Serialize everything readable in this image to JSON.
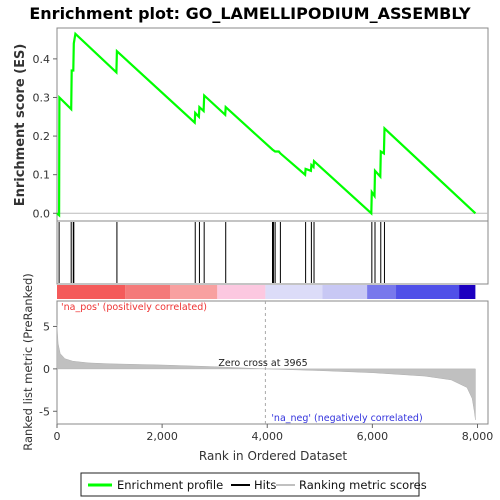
{
  "chart_data": {
    "type": "line",
    "title": "Enrichment plot: GO_LAMELLIPODIUM_ASSEMBLY",
    "panels": {
      "es": {
        "ylabel": "Enrichment score (ES)",
        "ylim": [
          -0.02,
          0.48
        ],
        "yticks": [
          "0.0",
          "0.1",
          "0.2",
          "0.3",
          "0.4"
        ],
        "ytick_values": [
          0.0,
          0.1,
          0.2,
          0.3,
          0.4
        ],
        "xlim": [
          0,
          8200
        ],
        "series": [
          {
            "name": "Enrichment profile",
            "color": "#00ff00",
            "x": [
              0,
              40,
              45,
              270,
              280,
              310,
              320,
              350,
              1130,
              1140,
              2620,
              2630,
              2700,
              2710,
              2790,
              2800,
              3200,
              3210,
              4100,
              4150,
              4220,
              4250,
              4720,
              4730,
              4830,
              4840,
              4880,
              4890,
              5980,
              5990,
              6040,
              6050,
              6150,
              6160,
              6220,
              6230,
              7960
            ],
            "y": [
              0.0,
              -0.005,
              0.3,
              0.27,
              0.37,
              0.37,
              0.44,
              0.465,
              0.365,
              0.42,
              0.235,
              0.26,
              0.25,
              0.275,
              0.265,
              0.305,
              0.255,
              0.275,
              0.165,
              0.16,
              0.16,
              0.155,
              0.1,
              0.115,
              0.11,
              0.125,
              0.12,
              0.135,
              0.0,
              0.055,
              0.045,
              0.11,
              0.095,
              0.16,
              0.155,
              0.22,
              0.0
            ]
          }
        ]
      },
      "hits": {
        "name": "Hits",
        "x": [
          40,
          270,
          310,
          320,
          1140,
          2630,
          2710,
          2800,
          3210,
          4100,
          4120,
          4150,
          4250,
          4730,
          4840,
          4890,
          5990,
          6050,
          6160,
          6230
        ]
      },
      "ranking": {
        "ylabel": "Ranked list metric (PreRanked)",
        "xlabel": "Rank in Ordered Dataset",
        "ylim": [
          -6.5,
          8
        ],
        "yticks": [
          "-5",
          "0",
          "5"
        ],
        "ytick_values": [
          -5,
          0,
          5
        ],
        "xlim": [
          0,
          8200
        ],
        "xticks": [
          "0",
          "2,000",
          "4,000",
          "6,000",
          "8,000"
        ],
        "xtick_values": [
          0,
          2000,
          4000,
          6000,
          8000
        ],
        "x": [
          0,
          20,
          60,
          150,
          300,
          600,
          1000,
          2000,
          3000,
          3965,
          5000,
          6000,
          7000,
          7500,
          7800,
          7900,
          7940,
          7960
        ],
        "y": [
          5.2,
          3.0,
          1.8,
          1.2,
          0.9,
          0.7,
          0.6,
          0.45,
          0.25,
          0.0,
          -0.2,
          -0.45,
          -0.85,
          -1.3,
          -2.2,
          -3.5,
          -5.0,
          -6.0
        ],
        "zero_cross": 3965,
        "annotations": {
          "zero_cross": "Zero cross at 3965",
          "pos": "'na_pos' (positively correlated)",
          "neg": "'na_neg' (negatively correlated)"
        },
        "colorbar": [
          {
            "from": 0,
            "to": 1300,
            "color": "#f45a5a"
          },
          {
            "from": 1300,
            "to": 2150,
            "color": "#f47a7a"
          },
          {
            "from": 2150,
            "to": 3050,
            "color": "#f8a0a0"
          },
          {
            "from": 3050,
            "to": 3965,
            "color": "#fcc8e0"
          },
          {
            "from": 3965,
            "to": 5050,
            "color": "#dcdcf8"
          },
          {
            "from": 5050,
            "to": 5900,
            "color": "#c8c8f4"
          },
          {
            "from": 5900,
            "to": 6450,
            "color": "#7878ec"
          },
          {
            "from": 6450,
            "to": 7650,
            "color": "#5050e8"
          },
          {
            "from": 7650,
            "to": 7960,
            "color": "#1c00c0"
          }
        ]
      }
    },
    "legend": {
      "placement": "bottom",
      "entries": [
        {
          "label": "Enrichment profile",
          "color": "#00ff00"
        },
        {
          "label": "Hits",
          "color": "#000000"
        },
        {
          "label": "Ranking metric scores",
          "color": "#c0c0c0"
        }
      ]
    },
    "grid": false
  }
}
